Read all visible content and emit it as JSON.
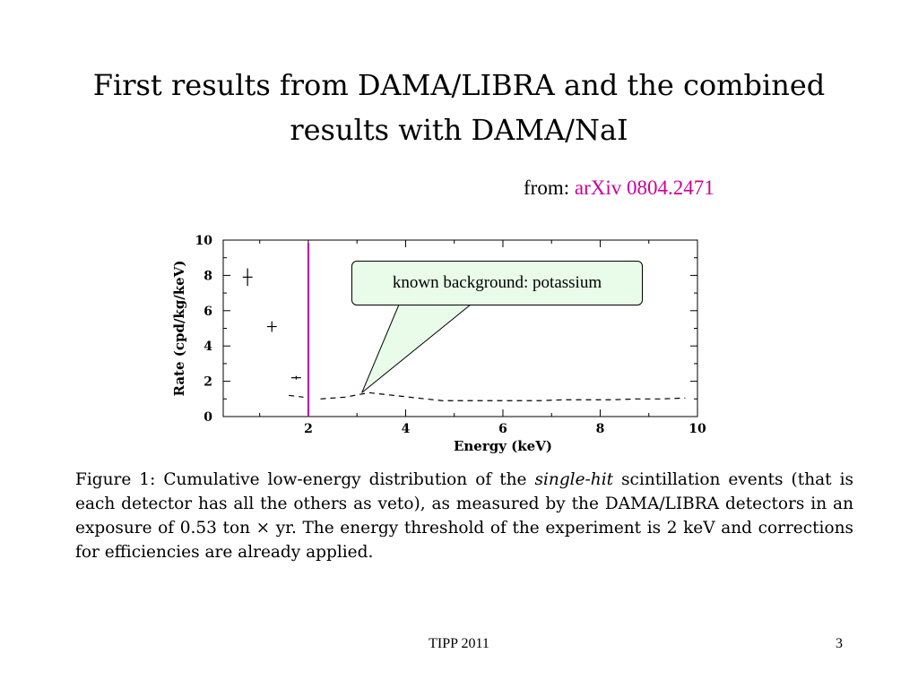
{
  "slide": {
    "title_line1": "First results from DAMA/LIBRA and the combined",
    "title_line2": "results with DAMA/NaI",
    "source_prefix": "from:",
    "source_link": "arXiv 0804.2471",
    "callout": "known background: potassium",
    "caption": {
      "fig_label": "Figure 1:",
      "before": "Cumulative low-energy distribution of the",
      "emph": "single-hit",
      "after": "scintillation events (that is each detector has all the others as veto), as measured by the DAMA/LIBRA detectors in an exposure of 0.53 ton × yr. The energy threshold of the experiment is 2 keV and corrections for efficiencies are already applied."
    },
    "footer_center": "TIPP 2011",
    "page_number": "3"
  },
  "colors": {
    "threshold_line": "#cc0099",
    "callout_fill": "#e9fbe9",
    "link": "#cc0099"
  },
  "chart_data": {
    "type": "scatter",
    "title": "",
    "xlabel": "Energy (keV)",
    "ylabel": "Rate (cpd/kg/keV)",
    "xlim": [
      0.25,
      10
    ],
    "ylim": [
      0,
      10
    ],
    "xticks": [
      2,
      4,
      6,
      8,
      10
    ],
    "yticks": [
      0,
      2,
      4,
      6,
      8,
      10
    ],
    "grid": false,
    "points_with_errors": [
      {
        "x": 0.75,
        "y": 7.9,
        "xerr": 0.1,
        "yerr": 0.5
      },
      {
        "x": 1.25,
        "y": 5.1,
        "xerr": 0.1,
        "yerr": 0.3
      },
      {
        "x": 1.75,
        "y": 2.2,
        "xerr": 0.1,
        "yerr": 0.1
      }
    ],
    "series": [
      {
        "style": "dashed",
        "x": [
          2.25,
          2.75,
          3.25,
          3.75,
          4.25,
          4.75,
          5.25,
          5.75,
          6.25,
          6.75,
          7.25,
          7.75,
          8.25,
          8.75,
          9.25,
          9.75
        ],
        "values": [
          1.0,
          1.1,
          1.35,
          1.2,
          1.05,
          0.9,
          0.9,
          0.9,
          0.9,
          0.9,
          0.95,
          0.95,
          0.95,
          1.0,
          1.0,
          1.05
        ]
      },
      {
        "style": "dashed",
        "x": [
          1.6,
          1.9
        ],
        "values": [
          1.2,
          1.1
        ]
      }
    ],
    "threshold_x": 2,
    "callout_target": {
      "x": 3.1,
      "y": 1.35
    }
  }
}
